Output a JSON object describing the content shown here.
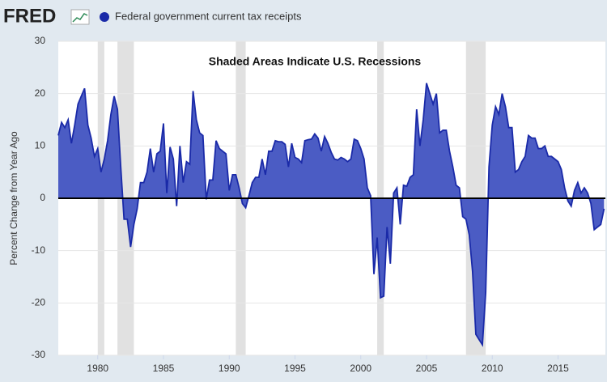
{
  "chart_data": {
    "type": "area",
    "logo": "FRED",
    "annotation": "Shaded Areas Indicate U.S. Recessions",
    "ylabel": "Percent Change from Year Ago",
    "series": [
      {
        "name": "Federal government current tax receipts",
        "color": "#1a2aa8",
        "fill": "#4b5cc4",
        "x": [
          1977,
          1977.25,
          1977.5,
          1977.75,
          1978,
          1978.25,
          1978.5,
          1978.75,
          1979,
          1979.25,
          1979.5,
          1979.75,
          1980,
          1980.25,
          1980.5,
          1980.75,
          1981,
          1981.25,
          1981.5,
          1981.75,
          1982,
          1982.25,
          1982.5,
          1982.75,
          1983,
          1983.25,
          1983.5,
          1983.75,
          1984,
          1984.25,
          1984.5,
          1984.75,
          1985,
          1985.25,
          1985.5,
          1985.75,
          1986,
          1986.25,
          1986.5,
          1986.75,
          1987,
          1987.25,
          1987.5,
          1987.75,
          1988,
          1988.25,
          1988.5,
          1988.75,
          1989,
          1989.25,
          1989.5,
          1989.75,
          1990,
          1990.25,
          1990.5,
          1990.75,
          1991,
          1991.25,
          1991.5,
          1991.75,
          1992,
          1992.25,
          1992.5,
          1992.75,
          1993,
          1993.25,
          1993.5,
          1993.75,
          1994,
          1994.25,
          1994.5,
          1994.75,
          1995,
          1995.25,
          1995.5,
          1995.75,
          1996,
          1996.25,
          1996.5,
          1996.75,
          1997,
          1997.25,
          1997.5,
          1997.75,
          1998,
          1998.25,
          1998.5,
          1998.75,
          1999,
          1999.25,
          1999.5,
          1999.75,
          2000,
          2000.25,
          2000.5,
          2000.75,
          2001,
          2001.25,
          2001.5,
          2001.75,
          2002,
          2002.25,
          2002.5,
          2002.75,
          2003,
          2003.25,
          2003.5,
          2003.75,
          2004,
          2004.25,
          2004.5,
          2004.75,
          2005,
          2005.25,
          2005.5,
          2005.75,
          2006,
          2006.25,
          2006.5,
          2006.75,
          2007,
          2007.25,
          2007.5,
          2007.75,
          2008,
          2008.25,
          2008.5,
          2008.75,
          2009,
          2009.25,
          2009.5,
          2009.75,
          2010,
          2010.25,
          2010.5,
          2010.75,
          2011,
          2011.25,
          2011.5,
          2011.75,
          2012,
          2012.25,
          2012.5,
          2012.75,
          2013,
          2013.25,
          2013.5,
          2013.75,
          2014,
          2014.25,
          2014.5,
          2014.75,
          2015,
          2015.25,
          2015.5,
          2015.75,
          2016,
          2016.25,
          2016.5,
          2016.75,
          2017,
          2017.25,
          2017.5,
          2017.75,
          2018,
          2018.25,
          2018.5
        ],
        "values": [
          12,
          14.5,
          13.5,
          15,
          10.5,
          14,
          18,
          19.5,
          21,
          14,
          11.5,
          8,
          9.5,
          5,
          7.5,
          11,
          16,
          19.5,
          17,
          6,
          -4,
          -4,
          -9.3,
          -5,
          -2,
          3,
          3,
          5,
          9.5,
          5,
          8.5,
          9,
          14.3,
          1,
          9.8,
          7.5,
          -1.5,
          10,
          3,
          7,
          6.5,
          20.5,
          15,
          12.5,
          12,
          -0.2,
          3.5,
          3.5,
          11,
          9.5,
          9,
          8.5,
          1.5,
          4.5,
          4.5,
          2,
          -1,
          -1.8,
          0.5,
          3,
          4,
          4,
          7.5,
          4.5,
          9,
          9,
          11,
          10.8,
          10.8,
          10.3,
          6,
          10.5,
          7.8,
          7.5,
          6.8,
          11,
          11.2,
          11.3,
          12.3,
          11.5,
          9,
          11.8,
          10.5,
          8.8,
          7.5,
          7.3,
          7.8,
          7.5,
          7,
          7.5,
          11.3,
          11,
          9.5,
          7.5,
          2,
          0.5,
          -14.5,
          -7.5,
          -19,
          -18.7,
          -5.5,
          -12.5,
          1,
          2,
          -5,
          2.5,
          2.3,
          4,
          4.5,
          17,
          10,
          15,
          22,
          20,
          18,
          20,
          12.5,
          13,
          13,
          9,
          6,
          2.5,
          2,
          -3.5,
          -4,
          -7,
          -14,
          -26,
          -27,
          -28,
          -18,
          6,
          14,
          17.5,
          16,
          20,
          17.5,
          13.5,
          13.5,
          5,
          5.5,
          7,
          8,
          12,
          11.5,
          11.5,
          9.5,
          9.5,
          10,
          8,
          8,
          7.5,
          7,
          5.5,
          2,
          -0.5,
          -1.5,
          1.5,
          3,
          1,
          2,
          1,
          -1,
          -6,
          -5.5,
          -5,
          -2
        ]
      }
    ],
    "recessions": [
      [
        1980,
        1980.5
      ],
      [
        1981.5,
        1982.75
      ],
      [
        1990.5,
        1991.25
      ],
      [
        2001.25,
        2001.75
      ],
      [
        2008,
        2009.5
      ]
    ],
    "xlim": [
      1977,
      2018.6
    ],
    "xticks": [
      1980,
      1985,
      1990,
      1995,
      2000,
      2005,
      2010,
      2015
    ],
    "ylim": [
      -30,
      30
    ],
    "yticks": [
      -30,
      -20,
      -10,
      0,
      10,
      20,
      30
    ],
    "grid": true
  }
}
